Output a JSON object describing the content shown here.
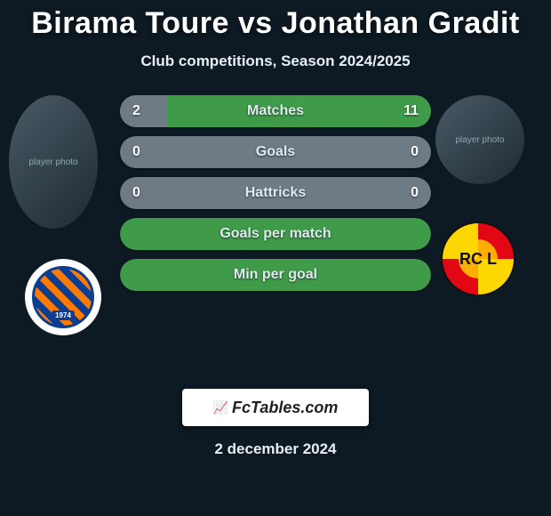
{
  "title": "Birama Toure vs Jonathan Gradit",
  "subtitle": "Club competitions, Season 2024/2025",
  "date": "2 december 2024",
  "site_logo_text": "FcTables.com",
  "colors": {
    "background": "#0d1a23",
    "bar_neutral": "#6e7b85",
    "bar_fill": "#3f9a4a",
    "bar_outline": "#3f9a4a"
  },
  "player_left": {
    "name": "Birama Toure",
    "photo_placeholder": "player photo",
    "club_name": "Montpellier HSC",
    "club_year": "1974"
  },
  "player_right": {
    "name": "Jonathan Gradit",
    "photo_placeholder": "player photo",
    "club_name": "RC Lens",
    "club_abbrev": "RC L"
  },
  "stats": [
    {
      "label": "Matches",
      "left_value": "2",
      "right_value": "11",
      "left_pct": 15,
      "right_pct": 85,
      "base_color": "#3f9a4a",
      "fill_left_color": "#6e7b85",
      "fill_right_color": "#3f9a4a"
    },
    {
      "label": "Goals",
      "left_value": "0",
      "right_value": "0",
      "left_pct": 0,
      "right_pct": 0,
      "base_color": "#6e7b85",
      "fill_left_color": "#6e7b85",
      "fill_right_color": "#6e7b85"
    },
    {
      "label": "Hattricks",
      "left_value": "0",
      "right_value": "0",
      "left_pct": 0,
      "right_pct": 0,
      "base_color": "#6e7b85",
      "fill_left_color": "#6e7b85",
      "fill_right_color": "#6e7b85"
    },
    {
      "label": "Goals per match",
      "left_value": "",
      "right_value": "",
      "left_pct": 0,
      "right_pct": 0,
      "base_color": "#3f9a4a",
      "fill_left_color": "#3f9a4a",
      "fill_right_color": "#3f9a4a"
    },
    {
      "label": "Min per goal",
      "left_value": "",
      "right_value": "",
      "left_pct": 0,
      "right_pct": 0,
      "base_color": "#3f9a4a",
      "fill_left_color": "#3f9a4a",
      "fill_right_color": "#3f9a4a"
    }
  ]
}
